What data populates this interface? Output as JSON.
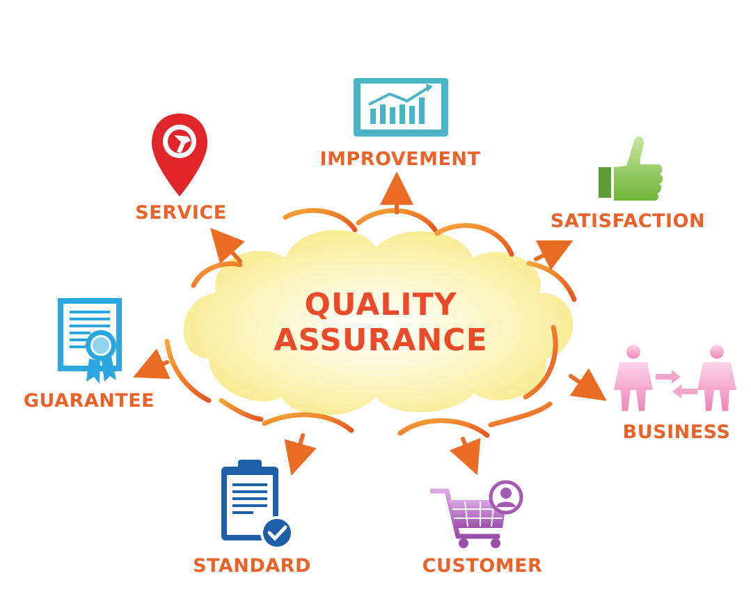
{
  "center": {
    "line1": "QUALITY",
    "line2": "ASSURANCE"
  },
  "nodes": {
    "improvement": {
      "label": "IMPROVEMENT",
      "icon": "monitor-chart-icon",
      "color": "#4bb3c4"
    },
    "service": {
      "label": "SERVICE",
      "icon": "wrench-pin-icon",
      "color": "#e0262a"
    },
    "satisfaction": {
      "label": "SATISFACTION",
      "icon": "thumbs-up-icon",
      "color": "#7cc24a"
    },
    "guarantee": {
      "label": "GUARANTEE",
      "icon": "certificate-icon",
      "color": "#2ba6df"
    },
    "business": {
      "label": "BUSINESS",
      "icon": "people-exchange-icon",
      "color": "#f08dbd"
    },
    "standard": {
      "label": "STANDARD",
      "icon": "clipboard-check-icon",
      "color": "#1f5fa8"
    },
    "customer": {
      "label": "CUSTOMER",
      "icon": "shopping-cart-icon",
      "color": "#a35ab2"
    }
  },
  "colors": {
    "accent": "#e8622a",
    "cloud": "#fbf3b0",
    "arrow": "#ea6b24"
  }
}
